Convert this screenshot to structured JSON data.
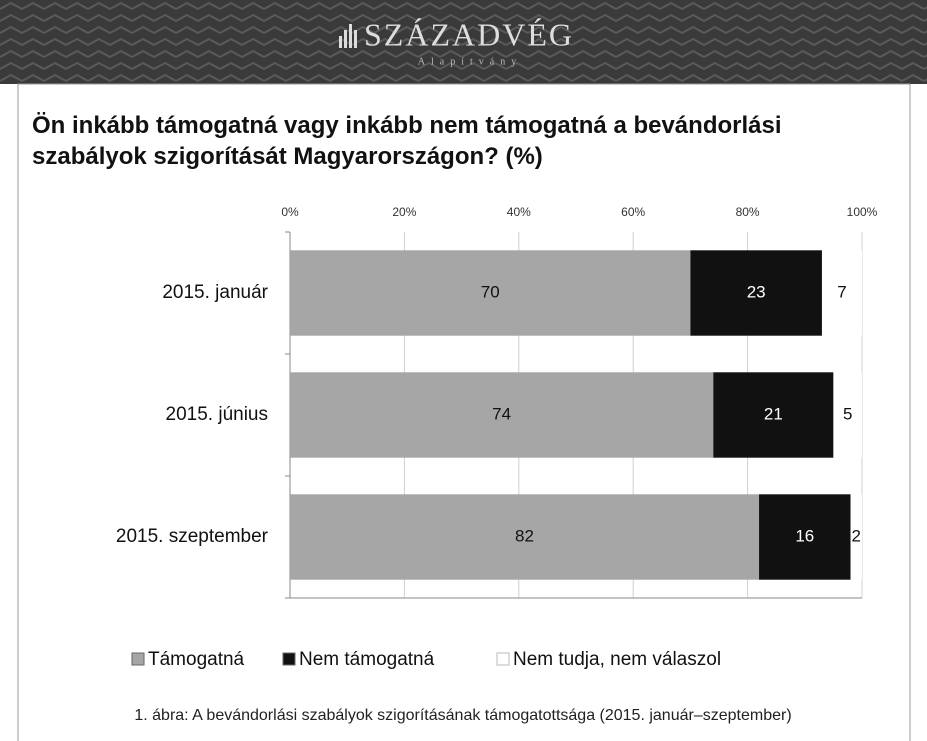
{
  "header": {
    "logo": "SZÁZADVÉG",
    "sublogo": "Alapítvány"
  },
  "caption": "1. ábra: A bevándorlási szabályok szigorításának támogatottsága (2015. január–szeptember)",
  "chart_data": {
    "type": "stacked-barh",
    "title": "Ön inkább támogatná vagy inkább nem támogatná a bevándorlási szabályok szigorítását Magyarországon? (%)",
    "categories": [
      "2015. január",
      "2015. június",
      "2015. szeptember"
    ],
    "series": [
      {
        "name": "Támogatná",
        "color": "#a6a6a6",
        "values": [
          70,
          74,
          82
        ]
      },
      {
        "name": "Nem támogatná",
        "color": "#111111",
        "values": [
          23,
          21,
          16
        ]
      },
      {
        "name": "Nem tudja, nem válaszol",
        "color": "#ffffff",
        "values": [
          7,
          5,
          2
        ]
      }
    ],
    "xlim": [
      0,
      100
    ],
    "xticks": [
      {
        "value": 0,
        "label": "0%"
      },
      {
        "value": 20,
        "label": "20%"
      },
      {
        "value": 40,
        "label": "40%"
      },
      {
        "value": 60,
        "label": "60%"
      },
      {
        "value": 80,
        "label": "80%"
      },
      {
        "value": 100,
        "label": "100%"
      }
    ],
    "grid": true,
    "legend": "bottom"
  }
}
